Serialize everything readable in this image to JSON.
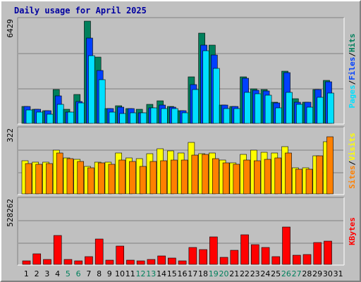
{
  "title": "Daily usage for April 2025",
  "colors": {
    "hits": "#00805c",
    "files": "#0040ff",
    "pages": "#00e0ff",
    "visits": "#ffff00",
    "sites": "#ff8000",
    "kbytes": "#ff0000",
    "text": "#000000",
    "weekend": "#00805c",
    "title": "#0000a0"
  },
  "chart_data": [
    {
      "type": "bar",
      "panel": "hits-files-pages",
      "max_label": "6429",
      "ylim": [
        0,
        6429
      ],
      "side_label": {
        "series": [
          "Pages",
          "Files",
          "Hits"
        ],
        "separator": "/"
      },
      "categories": [
        "1",
        "2",
        "3",
        "4",
        "5",
        "6",
        "7",
        "8",
        "9",
        "10",
        "11",
        "12",
        "13",
        "14",
        "15",
        "16",
        "17",
        "18",
        "19",
        "20",
        "21",
        "22",
        "23",
        "24",
        "25",
        "26",
        "27",
        "28",
        "29",
        "30",
        "31"
      ],
      "series": [
        {
          "name": "Hits",
          "values": [
            1050,
            900,
            780,
            2120,
            890,
            1800,
            6430,
            4180,
            920,
            1130,
            940,
            880,
            1180,
            1420,
            1070,
            780,
            2920,
            5690,
            4930,
            1150,
            1060,
            2920,
            2190,
            2130,
            1330,
            3260,
            1530,
            1330,
            2150,
            2700,
            0
          ]
        },
        {
          "name": "Files",
          "values": [
            1050,
            900,
            780,
            1720,
            700,
            1380,
            5350,
            3310,
            920,
            1000,
            940,
            660,
            980,
            1150,
            1020,
            780,
            2420,
            4910,
            4290,
            1150,
            1060,
            2820,
            2100,
            2040,
            1270,
            3200,
            1350,
            1330,
            2150,
            2600,
            0
          ]
        },
        {
          "name": "Pages",
          "values": [
            830,
            730,
            560,
            1180,
            720,
            1280,
            4270,
            2760,
            710,
            630,
            680,
            650,
            960,
            910,
            950,
            660,
            2110,
            4570,
            3450,
            930,
            950,
            1930,
            1870,
            1770,
            980,
            1940,
            1180,
            1010,
            1650,
            1920,
            0
          ]
        }
      ]
    },
    {
      "type": "bar",
      "panel": "visits-sites",
      "max_label": "322",
      "ylim": [
        0,
        322
      ],
      "side_label": {
        "series": [
          "Sites",
          "Visits"
        ],
        "separator": "/"
      },
      "categories": [
        "1",
        "2",
        "3",
        "4",
        "5",
        "6",
        "7",
        "8",
        "9",
        "10",
        "11",
        "12",
        "13",
        "14",
        "15",
        "16",
        "17",
        "18",
        "19",
        "20",
        "21",
        "22",
        "23",
        "24",
        "25",
        "26",
        "27",
        "28",
        "29",
        "30",
        "31"
      ],
      "series": [
        {
          "name": "Visits",
          "values": [
            168,
            162,
            162,
            223,
            182,
            174,
            138,
            160,
            162,
            209,
            181,
            178,
            204,
            228,
            217,
            208,
            262,
            203,
            207,
            172,
            159,
            200,
            222,
            212,
            207,
            241,
            134,
            133,
            193,
            264,
            0
          ]
        },
        {
          "name": "Sites",
          "values": [
            155,
            151,
            155,
            206,
            178,
            163,
            132,
            158,
            149,
            170,
            164,
            140,
            166,
            168,
            170,
            170,
            196,
            200,
            179,
            157,
            152,
            170,
            168,
            176,
            183,
            208,
            124,
            125,
            193,
            290,
            0
          ]
        }
      ]
    },
    {
      "type": "bar",
      "panel": "kbytes",
      "max_label": "528262",
      "ylim": [
        0,
        528262
      ],
      "side_label": {
        "series": [
          "KBytes"
        ],
        "separator": ""
      },
      "categories": [
        "1",
        "2",
        "3",
        "4",
        "5",
        "6",
        "7",
        "8",
        "9",
        "10",
        "11",
        "12",
        "13",
        "14",
        "15",
        "16",
        "17",
        "18",
        "19",
        "20",
        "21",
        "22",
        "23",
        "24",
        "25",
        "26",
        "27",
        "28",
        "29",
        "30",
        "31"
      ],
      "series": [
        {
          "name": "KBytes",
          "values": [
            30000,
            90000,
            40000,
            240000,
            40000,
            30000,
            65000,
            210000,
            35000,
            150000,
            35000,
            30000,
            40000,
            68000,
            52000,
            28000,
            142000,
            125000,
            230000,
            60000,
            120000,
            245000,
            162000,
            142000,
            63000,
            310000,
            75000,
            82000,
            182000,
            195000,
            0
          ]
        }
      ]
    }
  ],
  "weekend_days": [
    "5",
    "6",
    "12",
    "13",
    "19",
    "20",
    "26",
    "27"
  ]
}
